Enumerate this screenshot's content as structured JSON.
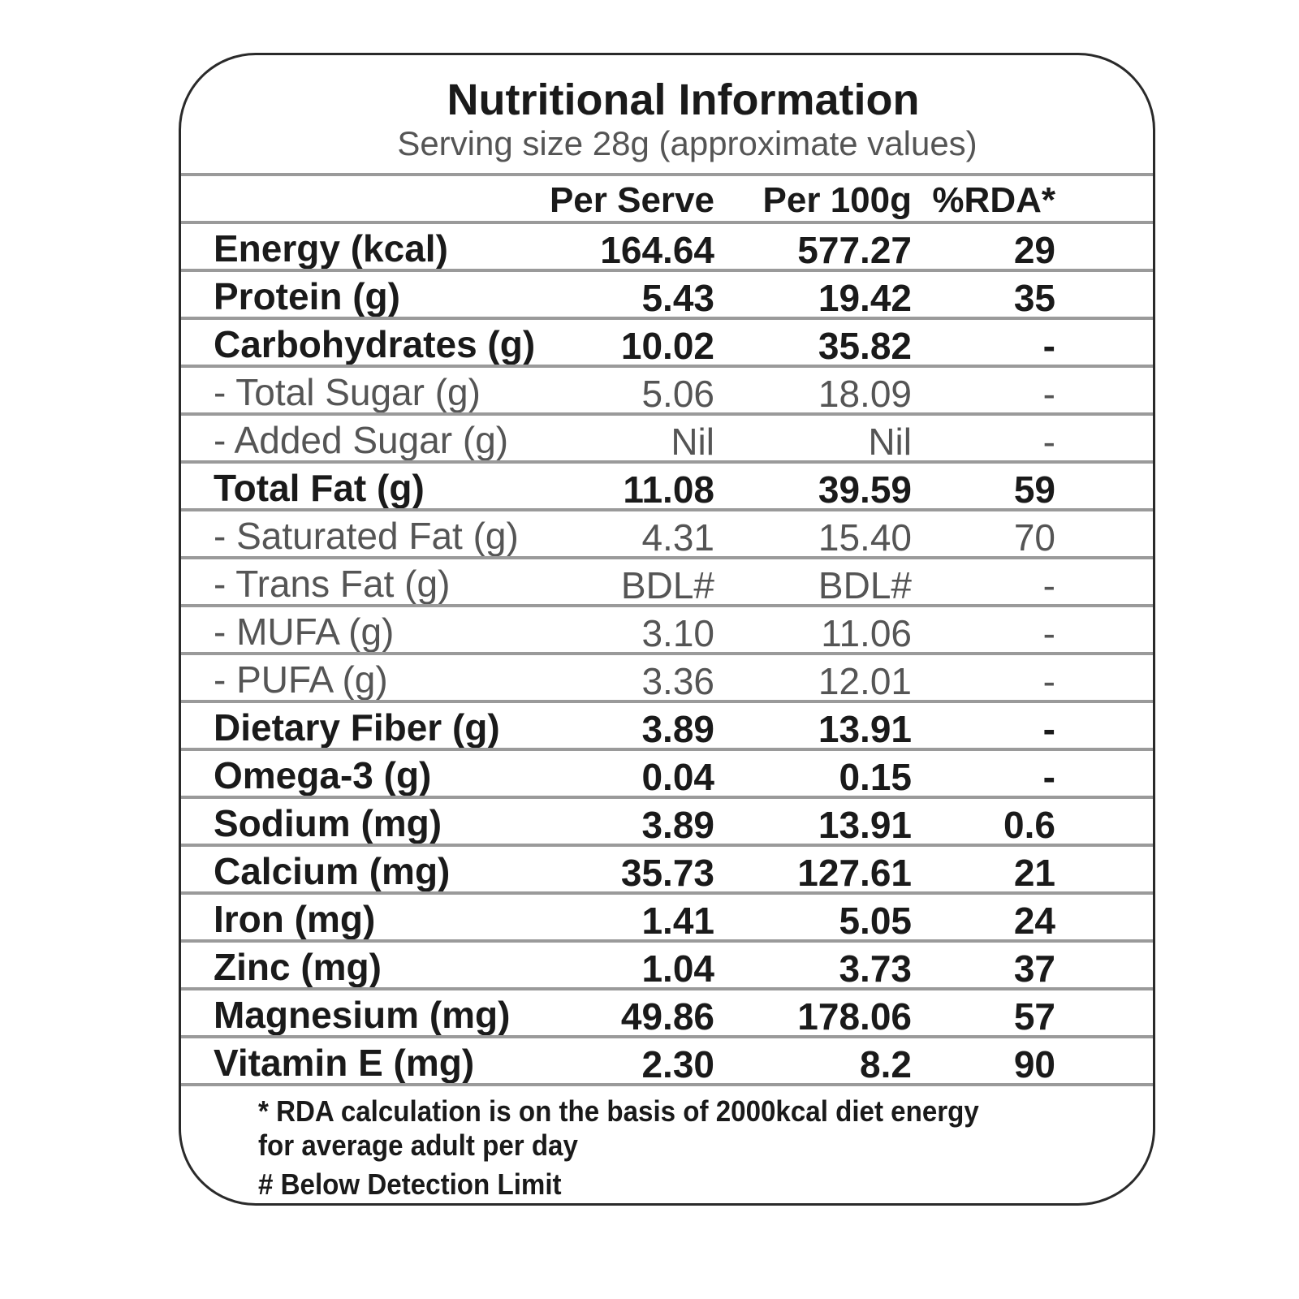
{
  "header": {
    "title": "Nutritional Information",
    "subtitle": "Serving size 28g (approximate values)"
  },
  "table": {
    "columns": [
      "Per Serve",
      "Per 100g",
      "%RDA*"
    ],
    "rows": [
      [
        "Energy (kcal)",
        "164.64",
        "577.27",
        "29"
      ],
      [
        "Protein (g)",
        "5.43",
        "19.42",
        "35"
      ],
      [
        "Carbohydrates (g)",
        "10.02",
        "35.82",
        "-"
      ],
      [
        "- Total Sugar (g)",
        "5.06",
        "18.09",
        "-"
      ],
      [
        "- Added Sugar (g)",
        "Nil",
        "Nil",
        "-"
      ],
      [
        "Total Fat (g)",
        "11.08",
        "39.59",
        "59"
      ],
      [
        "- Saturated Fat (g)",
        "4.31",
        "15.40",
        "70"
      ],
      [
        "- Trans Fat (g)",
        "BDL#",
        "BDL#",
        "-"
      ],
      [
        "- MUFA (g)",
        "3.10",
        "11.06",
        "-"
      ],
      [
        "- PUFA (g)",
        "3.36",
        "12.01",
        "-"
      ],
      [
        "Dietary Fiber (g)",
        "3.89",
        "13.91",
        "-"
      ],
      [
        "Omega-3 (g)",
        "0.04",
        "0.15",
        "-"
      ],
      [
        "Sodium (mg)",
        "3.89",
        "13.91",
        "0.6"
      ],
      [
        "Calcium (mg)",
        "35.73",
        "127.61",
        "21"
      ],
      [
        "Iron (mg)",
        "1.41",
        "5.05",
        "24"
      ],
      [
        "Zinc (mg)",
        "1.04",
        "3.73",
        "37"
      ],
      [
        "Magnesium (mg)",
        "49.86",
        "178.06",
        "57"
      ],
      [
        "Vitamin E (mg)",
        "2.30",
        "8.2",
        "90"
      ]
    ]
  },
  "footnotes": [
    "* RDA calculation is on the basis of 2000kcal diet energy for average adult per day",
    "# Below Detection Limit"
  ]
}
